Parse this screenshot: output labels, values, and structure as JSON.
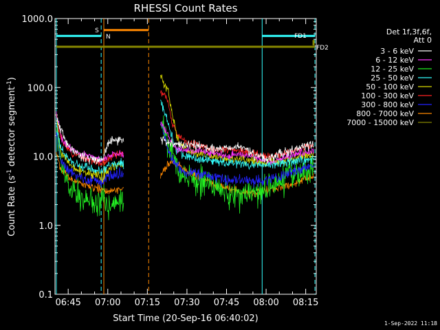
{
  "chart_data": {
    "type": "line",
    "title": "RHESSI Count Rates",
    "xlabel": "Start Time (20-Sep-16 06:40:02)",
    "ylabel_parts": [
      "Count Rate (s",
      "-1",
      " detector segment",
      "-1",
      ")"
    ],
    "ylabel": "Count Rate (s^-1 detector segment^-1)",
    "yscale": "log",
    "ylim": [
      0.1,
      1000
    ],
    "y_ticks": [
      {
        "value": 0.1,
        "label": "0.1"
      },
      {
        "value": 1,
        "label": "1.0"
      },
      {
        "value": 10,
        "label": "10.0"
      },
      {
        "value": 100,
        "label": "100.0"
      },
      {
        "value": 1000,
        "label": "1000.0"
      }
    ],
    "xlim_min": [
      40.0,
      139.0
    ],
    "x_ticks": [
      {
        "value": 45,
        "label": "06:45"
      },
      {
        "value": 60,
        "label": "07:00"
      },
      {
        "value": 75,
        "label": "07:15"
      },
      {
        "value": 90,
        "label": "07:30"
      },
      {
        "value": 105,
        "label": "07:45"
      },
      {
        "value": 120,
        "label": "08:00"
      },
      {
        "value": 135,
        "label": "08:15"
      }
    ],
    "legend_header": [
      "Det 1f,3f,6f,",
      "Att 0"
    ],
    "legend_position": "right",
    "series": [
      {
        "name": "3 - 6 keV",
        "color": "#ffffff",
        "seed": 11,
        "noise": 0.1,
        "segments": [
          {
            "x": [
              40.5,
              45,
              50,
              55,
              58,
              60,
              62.5,
              66
            ],
            "y": [
              35,
              14,
              10,
              9,
              9,
              15,
              17,
              18
            ]
          },
          {
            "x": [
              80,
              82,
              85,
              90,
              95,
              100,
              105,
              110,
              115,
              120,
              125,
              130,
              135,
              138
            ],
            "y": [
              18,
              16,
              15,
              15,
              14,
              13,
              13,
              14,
              11,
              9,
              11,
              12,
              14,
              15
            ]
          }
        ]
      },
      {
        "name": "6 - 12 keV",
        "color": "#ff33ff",
        "seed": 23,
        "noise": 0.08,
        "segments": [
          {
            "x": [
              40.5,
              43,
              46,
              50,
              55,
              58,
              60,
              62.5,
              66
            ],
            "y": [
              40,
              16,
              13,
              11,
              9.5,
              9,
              10,
              11,
              11
            ]
          },
          {
            "x": [
              80,
              81,
              83,
              85,
              87,
              90,
              95,
              100,
              105,
              110,
              115,
              120,
              125,
              130,
              135,
              138
            ],
            "y": [
              30,
              28,
              20,
              14,
              12.5,
              12,
              12,
              11,
              10,
              11,
              10,
              8.5,
              9,
              10.5,
              11.5,
              12
            ]
          }
        ]
      },
      {
        "name": "12 - 25 keV",
        "color": "#22ee22",
        "seed": 37,
        "noise": 0.3,
        "segments": [
          {
            "x": [
              40.5,
              42,
              44,
              46,
              48,
              50,
              55,
              58,
              60,
              62,
              66
            ],
            "y": [
              18,
              9,
              5,
              3.5,
              3,
              2.5,
              2.2,
              2.5,
              1.7,
              2,
              2.5
            ]
          },
          {
            "x": [
              80,
              81,
              83,
              85,
              87,
              90,
              95,
              100,
              105,
              110,
              115,
              120,
              125,
              130,
              135,
              138
            ],
            "y": [
              28,
              30,
              15,
              10,
              6,
              5,
              4.2,
              3.5,
              3,
              2.6,
              2.8,
              3,
              4,
              5.5,
              6.5,
              7
            ]
          }
        ]
      },
      {
        "name": "25 - 50 keV",
        "color": "#33ffff",
        "seed": 41,
        "noise": 0.1,
        "segments": [
          {
            "x": [
              40.5,
              42,
              44,
              47,
              50,
              55,
              58,
              60,
              62,
              66
            ],
            "y": [
              30,
              14,
              10,
              8,
              7,
              6.5,
              6,
              7,
              7.5,
              8
            ]
          },
          {
            "x": [
              80,
              81,
              82,
              83,
              84,
              86,
              88,
              90,
              95,
              100,
              105,
              110,
              115,
              120,
              125,
              130,
              135,
              138
            ],
            "y": [
              70,
              50,
              40,
              30,
              20,
              13,
              11,
              10,
              9,
              8.5,
              8,
              8,
              7.5,
              7.5,
              8,
              8.5,
              9,
              9.5
            ]
          }
        ]
      },
      {
        "name": "50 - 100 keV",
        "color": "#dddd00",
        "seed": 53,
        "noise": 0.1,
        "segments": [
          {
            "x": [
              40.5,
              42,
              44,
              47,
              50,
              55,
              58,
              60,
              62,
              66
            ],
            "y": [
              45,
              12,
              9,
              7,
              6,
              5.5,
              5,
              6,
              7,
              8
            ]
          },
          {
            "x": [
              80,
              81,
              82,
              83,
              84,
              86,
              88,
              90,
              95,
              100,
              105,
              110,
              115,
              120,
              125,
              130,
              135,
              138
            ],
            "y": [
              150,
              120,
              100,
              90,
              50,
              20,
              14,
              12,
              11,
              10,
              9,
              9.5,
              8.5,
              8,
              8.5,
              9.5,
              10.5,
              11
            ]
          }
        ]
      },
      {
        "name": "100 - 300 keV",
        "color": "#ff2222",
        "seed": 67,
        "noise": 0.08,
        "segments": [
          {
            "x": [
              40.5,
              42,
              44,
              47,
              50,
              55,
              58,
              60,
              62,
              66
            ],
            "y": [
              40,
              20,
              14,
              11,
              10,
              8.5,
              8,
              9,
              10,
              11
            ]
          },
          {
            "x": [
              80,
              81,
              82,
              83,
              84,
              86,
              88,
              90,
              95,
              100,
              105,
              110,
              115,
              120,
              125,
              130,
              135,
              138
            ],
            "y": [
              85,
              80,
              75,
              60,
              35,
              22,
              18,
              16,
              14,
              13,
              12.5,
              12,
              11,
              10,
              10.5,
              12,
              13.5,
              14.5
            ]
          }
        ]
      },
      {
        "name": "300 - 800 keV",
        "color": "#2222ff",
        "seed": 71,
        "noise": 0.12,
        "segments": [
          {
            "x": [
              40.5,
              42,
              44,
              47,
              50,
              55,
              58,
              60,
              62,
              66
            ],
            "y": [
              25,
              9,
              7,
              5.5,
              5,
              4.5,
              4.3,
              5,
              5.2,
              5.5
            ]
          },
          {
            "x": [
              80,
              81,
              83,
              85,
              88,
              90,
              95,
              100,
              105,
              110,
              115,
              120,
              125,
              130,
              135,
              138
            ],
            "y": [
              30,
              25,
              12,
              8,
              6.5,
              6,
              5.5,
              5,
              4.5,
              4.5,
              4.5,
              4.5,
              5,
              6,
              7,
              7.5
            ]
          }
        ]
      },
      {
        "name": "800 - 7000 keV",
        "color": "#ff8800",
        "seed": 83,
        "noise": 0.09,
        "segments": [
          {
            "x": [
              40.5,
              42,
              44,
              47,
              50,
              55,
              58,
              60,
              62,
              66
            ],
            "y": [
              12,
              7,
              5.5,
              4.5,
              4,
              3.5,
              3.3,
              3,
              3.2,
              3.5
            ]
          },
          {
            "x": [
              80,
              82,
              84,
              86,
              88,
              90,
              95,
              100,
              105,
              110,
              115,
              120,
              125,
              130,
              135,
              138
            ],
            "y": [
              5,
              7,
              8.5,
              8,
              7,
              6,
              5,
              4,
              3.5,
              3,
              3,
              3.2,
              3.5,
              4,
              4.8,
              5.2
            ]
          }
        ]
      },
      {
        "name": "7000 - 15000 keV",
        "color": "#888800",
        "seed": 97,
        "noise": 0,
        "segments": []
      }
    ],
    "annotations": {
      "vlines_cyan": [
        40.5,
        118.5
      ],
      "vlines_cyan_dashed": [
        57.5,
        138.5
      ],
      "vlines_orange": [
        58.5
      ],
      "vlines_orange_dashed": [
        75.5
      ],
      "gaps_min": [
        [
          66,
          80
        ]
      ],
      "flag_bars": [
        {
          "label": "S",
          "x": [
            40.5,
            57.5
          ],
          "y": 560,
          "color": "#33ffff",
          "label_color": "#ff8800"
        },
        {
          "label": "N",
          "x": [
            58.5,
            58.5
          ],
          "y": 480,
          "color": "#33ffff",
          "label_color": "#33ffff"
        },
        {
          "label": "",
          "x": [
            58.5,
            75.5
          ],
          "y": 680,
          "color": "#ff8800",
          "label_color": "#ff8800"
        },
        {
          "label": "FD1",
          "x": [
            118.5,
            138.5
          ],
          "y": 560,
          "color": "#33ffff",
          "label_color": "#888800"
        },
        {
          "label": "FD2",
          "x": [
            40.5,
            138.5
          ],
          "y": 390,
          "color": "#888800",
          "label_color": "#888800"
        }
      ]
    }
  },
  "footer": {
    "timestamp": "1-Sep-2022 11:18"
  }
}
